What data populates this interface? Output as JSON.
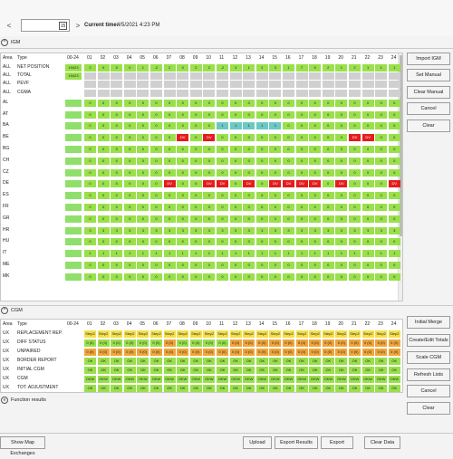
{
  "toolbar": {
    "prev": "<",
    "next": ">",
    "calendar_icon": "15",
    "current_time_label": "Current time:",
    "current_time_value": "4/5/2021 4:23 PM"
  },
  "igm": {
    "title": "IGM",
    "columns": [
      "Area",
      "Type",
      "00-24",
      "01",
      "02",
      "03",
      "04",
      "05",
      "06",
      "07",
      "08",
      "09",
      "10",
      "11",
      "12",
      "13",
      "14",
      "15",
      "16",
      "17",
      "18",
      "19",
      "20",
      "21",
      "22",
      "23",
      "24"
    ],
    "top_rows": [
      {
        "area": "ALL",
        "type": "NET POSITION",
        "total": "19423",
        "color": "g",
        "vals": [
          "2",
          "0",
          "0",
          "0",
          "1",
          "-2",
          "2",
          "0",
          "2",
          "2",
          "-2",
          "3",
          "1",
          "2",
          "3",
          "1",
          "7",
          "0",
          "2",
          "1",
          "2",
          "1",
          "1",
          "1"
        ]
      },
      {
        "area": "ALL",
        "type": "TOTAL",
        "total": "19423",
        "color": "gr",
        "vals": []
      },
      {
        "area": "ALL",
        "type": "PEVF",
        "total": "",
        "color": "gr",
        "vals": []
      },
      {
        "area": "ALL",
        "type": "CGMA",
        "total": "",
        "color": "gr",
        "vals": []
      }
    ],
    "countries": [
      {
        "area": "AL",
        "type": "",
        "vals": [
          "0",
          "0",
          "0",
          "0",
          "0",
          "0",
          "0",
          "0",
          "0",
          "0",
          "0",
          "0",
          "0",
          "0",
          "0",
          "0",
          "0",
          "0",
          "0",
          "0",
          "0",
          "0",
          "0",
          "0"
        ]
      },
      {
        "area": "AT",
        "type": "",
        "vals": [
          "0",
          "0",
          "0",
          "0",
          "0",
          "0",
          "0",
          "0",
          "0",
          "0",
          "0",
          "0",
          "0",
          "0",
          "0",
          "0",
          "0",
          "0",
          "0",
          "0",
          "0",
          "0",
          "0",
          "0"
        ]
      },
      {
        "area": "BA",
        "type": "",
        "vals": [
          "0",
          "0",
          "0",
          "0",
          "0",
          "0",
          "0",
          "0",
          "0",
          "0",
          "1",
          "1",
          "1",
          "1",
          "1",
          "0",
          "0",
          "0",
          "0",
          "0",
          "0",
          "0",
          "0",
          "0"
        ]
      },
      {
        "area": "BE",
        "type": "",
        "vals": [
          "0",
          "0",
          "0",
          "0",
          "0",
          "0",
          "0",
          "DV",
          "0",
          "DV",
          "0",
          "0",
          "0",
          "0",
          "0",
          "0",
          "0",
          "0",
          "0",
          "0",
          "DV",
          "DV",
          "0",
          "0"
        ]
      },
      {
        "area": "BG",
        "type": "",
        "vals": [
          "0",
          "0",
          "0",
          "0",
          "0",
          "0",
          "0",
          "0",
          "0",
          "0",
          "0",
          "0",
          "0",
          "0",
          "0",
          "0",
          "0",
          "0",
          "0",
          "0",
          "0",
          "0",
          "0",
          "0"
        ]
      },
      {
        "area": "CH",
        "type": "",
        "vals": [
          "0",
          "0",
          "0",
          "0",
          "0",
          "0",
          "0",
          "0",
          "0",
          "0",
          "0",
          "0",
          "0",
          "0",
          "0",
          "0",
          "0",
          "0",
          "0",
          "0",
          "0",
          "0",
          "0",
          "0"
        ]
      },
      {
        "area": "CZ",
        "type": "",
        "vals": [
          "0",
          "0",
          "0",
          "0",
          "0",
          "0",
          "0",
          "0",
          "0",
          "0",
          "0",
          "0",
          "0",
          "0",
          "0",
          "0",
          "0",
          "0",
          "0",
          "0",
          "0",
          "0",
          "0",
          "0"
        ]
      },
      {
        "area": "DE",
        "type": "",
        "vals": [
          "0",
          "0",
          "0",
          "0",
          "0",
          "0",
          "DV",
          "0",
          "0",
          "DV",
          "DV",
          "0",
          "DV",
          "0",
          "DV",
          "DV",
          "DV",
          "DV",
          "0",
          "DV",
          "0",
          "0",
          "0",
          "DV"
        ]
      },
      {
        "area": "ES",
        "type": "",
        "vals": [
          "0",
          "0",
          "0",
          "0",
          "0",
          "0",
          "0",
          "0",
          "0",
          "0",
          "0",
          "0",
          "0",
          "0",
          "0",
          "0",
          "0",
          "0",
          "0",
          "0",
          "0",
          "0",
          "0",
          "0"
        ]
      },
      {
        "area": "FR",
        "type": "",
        "vals": [
          "0",
          "0",
          "0",
          "0",
          "0",
          "0",
          "0",
          "0",
          "0",
          "0",
          "0",
          "0",
          "0",
          "0",
          "0",
          "0",
          "0",
          "0",
          "0",
          "0",
          "0",
          "0",
          "0",
          "0"
        ]
      },
      {
        "area": "GR",
        "type": "",
        "vals": [
          "0",
          "0",
          "0",
          "0",
          "0",
          "0",
          "0",
          "0",
          "0",
          "0",
          "0",
          "0",
          "0",
          "0",
          "0",
          "0",
          "0",
          "0",
          "0",
          "0",
          "0",
          "0",
          "0",
          "0"
        ]
      },
      {
        "area": "HR",
        "type": "",
        "vals": [
          "3",
          "3",
          "3",
          "3",
          "3",
          "3",
          "3",
          "3",
          "3",
          "3",
          "3",
          "3",
          "3",
          "3",
          "3",
          "3",
          "3",
          "3",
          "3",
          "3",
          "3",
          "3",
          "3",
          "3"
        ]
      },
      {
        "area": "HU",
        "type": "",
        "vals": [
          "0",
          "0",
          "0",
          "0",
          "0",
          "0",
          "0",
          "0",
          "0",
          "0",
          "0",
          "0",
          "0",
          "0",
          "0",
          "0",
          "0",
          "0",
          "0",
          "0",
          "0",
          "0",
          "0",
          "0"
        ]
      },
      {
        "area": "IT",
        "type": "",
        "vals": [
          "1",
          "1",
          "1",
          "1",
          "1",
          "1",
          "1",
          "1",
          "1",
          "1",
          "1",
          "1",
          "1",
          "1",
          "1",
          "1",
          "1",
          "1",
          "1",
          "1",
          "1",
          "1",
          "1",
          "1"
        ]
      },
      {
        "area": "ME",
        "type": "",
        "vals": [
          "0",
          "0",
          "0",
          "0",
          "0",
          "0",
          "0",
          "0",
          "0",
          "0",
          "0",
          "0",
          "0",
          "0",
          "0",
          "0",
          "0",
          "0",
          "0",
          "0",
          "0",
          "0",
          "0",
          "0"
        ]
      },
      {
        "area": "MK",
        "type": "",
        "vals": [
          "0",
          "0",
          "0",
          "0",
          "0",
          "0",
          "0",
          "0",
          "0",
          "0",
          "0",
          "0",
          "0",
          "0",
          "0",
          "0",
          "0",
          "0",
          "0",
          "0",
          "0",
          "0",
          "0",
          "0"
        ]
      }
    ],
    "buttons": [
      "Import IGM",
      "Set Manual",
      "Clear Manual",
      "Cancel",
      "Clear"
    ]
  },
  "cgm": {
    "title": "CGM",
    "columns": [
      "Area",
      "Type",
      "00-24",
      "01",
      "02",
      "03",
      "04",
      "05",
      "06",
      "07",
      "08",
      "09",
      "10",
      "11",
      "12",
      "13",
      "14",
      "15",
      "16",
      "17",
      "18",
      "19",
      "20",
      "21",
      "22",
      "23",
      "24"
    ],
    "rows": [
      {
        "area": "UX",
        "type": "REPLACEMENT REP.",
        "color": "y",
        "total": "",
        "val": "Step2"
      },
      {
        "area": "UX",
        "type": "DIFF STATUS",
        "color": "mix",
        "total": "",
        "val": "0 (0)"
      },
      {
        "area": "UX",
        "type": "UNPAIRED",
        "color": "o",
        "total": "",
        "val": "0 (0)"
      },
      {
        "area": "UX",
        "type": "BORDER REPORT",
        "color": "g",
        "total": "",
        "val": "OK"
      },
      {
        "area": "UX",
        "type": "INITIAL CGM",
        "color": "g",
        "total": "",
        "val": "OK"
      },
      {
        "area": "UX",
        "type": "CGM",
        "color": "g",
        "total": "",
        "val": "OKW"
      },
      {
        "area": "UX",
        "type": "TOT. ADJUSTMENT",
        "color": "g",
        "total": "",
        "val": "OK"
      }
    ],
    "buttons": [
      "Initial Merge",
      "Create/Edit Totals",
      "Scale CGM",
      "Refresh Lists",
      "Cancel",
      "Clear"
    ]
  },
  "function_results": {
    "title": "Function results"
  },
  "bottom_buttons": {
    "show_map": "Show Map Exchanges",
    "upload": "Upload",
    "export_results": "Export Results",
    "export": "Export",
    "clear_data": "Clear Data"
  }
}
